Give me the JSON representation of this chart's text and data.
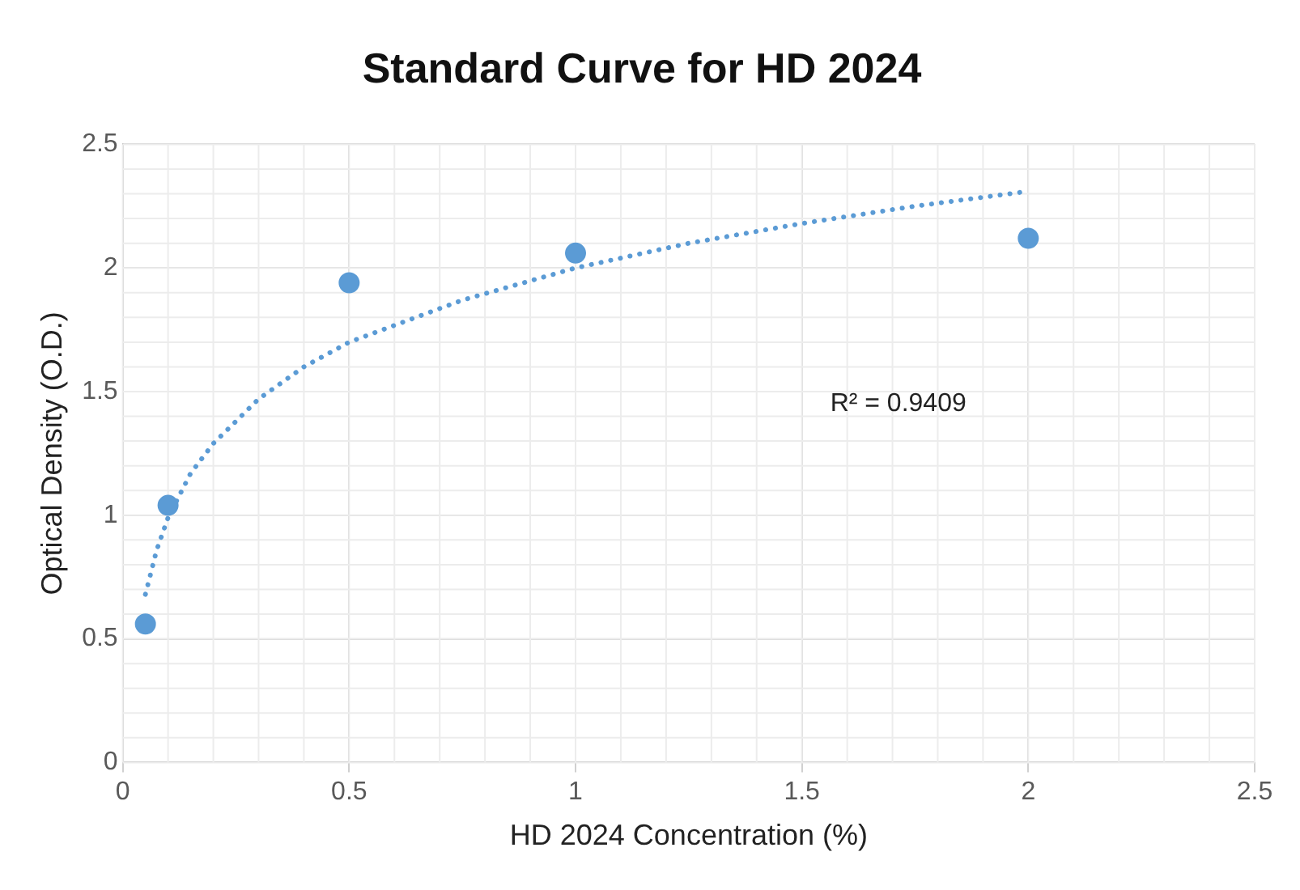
{
  "chart_data": {
    "type": "scatter",
    "title": "Standard Curve for HD 2024",
    "xlabel": "HD 2024 Concentration (%)",
    "ylabel": "Optical Density (O.D.)",
    "xlim": [
      0,
      2.5
    ],
    "xticks": [
      0,
      0.5,
      1,
      1.5,
      2,
      2.5
    ],
    "ylim": [
      0,
      2.5
    ],
    "yticks": [
      0,
      0.5,
      1,
      1.5,
      2,
      2.5
    ],
    "grid": true,
    "legend": false,
    "annotations": [
      "R² = 0.9409"
    ],
    "series": [
      {
        "type": "scatter",
        "color": "#5b9bd5",
        "marker": "circle",
        "x": [
          0.05,
          0.1,
          0.5,
          1,
          2
        ],
        "values": [
          0.56,
          1.04,
          1.94,
          2.06,
          2.12
        ]
      },
      {
        "type": "line",
        "color": "#5b9bd5",
        "marker": "none",
        "line_style": "dotted",
        "x": [
          0.05,
          0.075,
          0.1,
          0.15,
          0.2,
          0.3,
          0.4,
          0.5,
          0.75,
          1,
          1.25,
          1.5,
          1.75,
          2
        ],
        "values": [
          0.68,
          0.86,
          0.99,
          1.17,
          1.29,
          1.47,
          1.6,
          1.7,
          1.87,
          2.0,
          2.1,
          2.18,
          2.25,
          2.31
        ]
      }
    ]
  }
}
